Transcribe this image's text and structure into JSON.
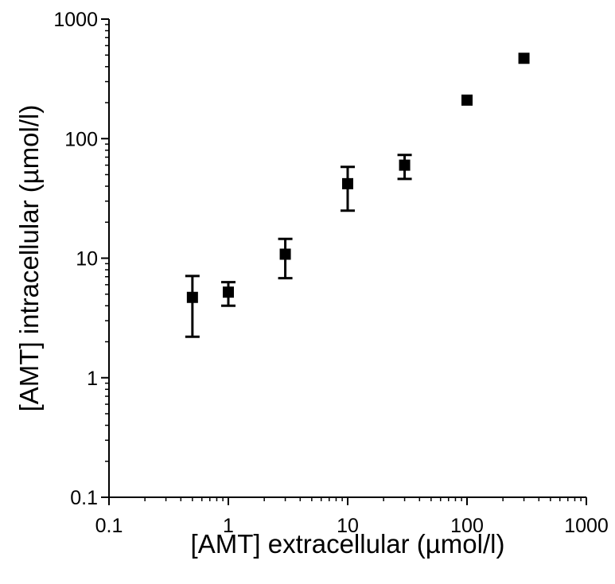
{
  "chart_data": {
    "type": "scatter",
    "title": "",
    "xlabel": "[AMT] extracellular (µmol/l)",
    "ylabel": "[AMT] intracellular (µmol/l)",
    "xscale": "log",
    "yscale": "log",
    "xlim": [
      0.1,
      1000
    ],
    "ylim": [
      0.1,
      1000
    ],
    "xticks": [
      "0.1",
      "1",
      "10",
      "100",
      "1000"
    ],
    "yticks": [
      "0.1",
      "1",
      "10",
      "100",
      "1000"
    ],
    "grid": false,
    "legend": "none",
    "marker": "square",
    "color": "#000000",
    "series": [
      {
        "points": [
          {
            "x": 0.5,
            "y": 4.7,
            "err_low": 2.2,
            "err_high": 7.1
          },
          {
            "x": 1,
            "y": 5.2,
            "err_low": 4.0,
            "err_high": 6.3
          },
          {
            "x": 3,
            "y": 10.8,
            "err_low": 6.8,
            "err_high": 14.5
          },
          {
            "x": 10,
            "y": 42,
            "err_low": 25,
            "err_high": 58
          },
          {
            "x": 30,
            "y": 60,
            "err_low": 46,
            "err_high": 73
          },
          {
            "x": 100,
            "y": 210
          },
          {
            "x": 300,
            "y": 470
          }
        ]
      }
    ]
  }
}
